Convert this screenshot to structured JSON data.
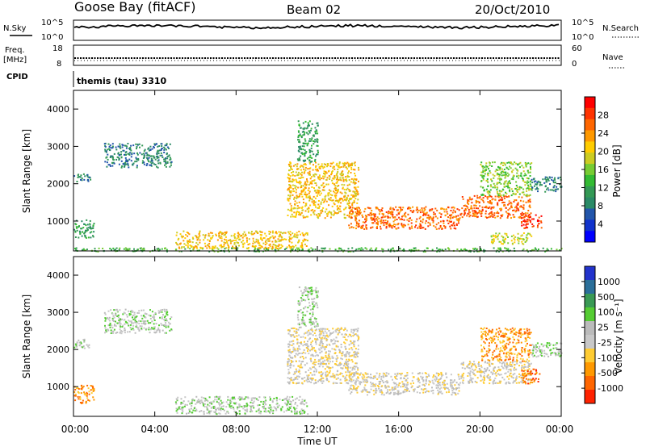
{
  "header": {
    "station": "Goose Bay (fitACF)",
    "beam": "Beam 02",
    "date": "20/Oct/2010"
  },
  "top_panels": {
    "nsky_label": "N.Sky",
    "nsearch_label": "N.Search",
    "noise_ticks": [
      "10^5",
      "10^0"
    ],
    "freq_label_1": "Freq.",
    "freq_label_2": "[MHz]",
    "freq_ticks": [
      "18",
      "8"
    ],
    "nave_label": "Nave",
    "nave_ticks": [
      "60",
      "0"
    ],
    "cpid_label": "CPID",
    "cpid_value": "themis (tau) 3310"
  },
  "colorbars": {
    "power": {
      "label": "Power [dB]",
      "ticks": [
        "28",
        "24",
        "20",
        "16",
        "12",
        "8",
        "4"
      ],
      "colors": [
        "#ff0000",
        "#ff3300",
        "#ff6600",
        "#ff9900",
        "#ffcc00",
        "#cccc22",
        "#77cc33",
        "#33bb33",
        "#339955",
        "#2a8a66",
        "#2255aa",
        "#1133cc",
        "#0000ff"
      ]
    },
    "velocity": {
      "label": "Velocity [m s⁻¹]",
      "ticks": [
        "1000",
        "500",
        "100",
        "25",
        "-25",
        "-100",
        "-500",
        "-1000"
      ],
      "colors": [
        "#2233cc",
        "#2b6f9a",
        "#3a9a55",
        "#55cc33",
        "#bbbbbb",
        "#c8c8c8",
        "#ffcc33",
        "#ff9900",
        "#ff6600",
        "#ff2200"
      ]
    }
  },
  "chart_data": [
    {
      "type": "heatmap",
      "title": "Power",
      "ylabel": "Slant Range [km]",
      "ylim": [
        200,
        4500
      ],
      "yticks": [
        "4000",
        "3000",
        "2000",
        "1000"
      ],
      "xlim": [
        0,
        24
      ],
      "scatter_regions": [
        {
          "t0": 0.0,
          "t1": 0.8,
          "r0": 2050,
          "r1": 2300,
          "level": 3
        },
        {
          "t0": 1.5,
          "t1": 4.8,
          "r0": 2450,
          "r1": 3100,
          "level": 3
        },
        {
          "t0": 0.0,
          "t1": 1.0,
          "r0": 550,
          "r1": 1050,
          "level": 4
        },
        {
          "t0": 0.0,
          "t1": 24.0,
          "r0": 200,
          "r1": 300,
          "level": 5
        },
        {
          "t0": 5.0,
          "t1": 11.5,
          "r0": 280,
          "r1": 750,
          "level": 8
        },
        {
          "t0": 10.5,
          "t1": 14.0,
          "r0": 1100,
          "r1": 2600,
          "level": 8
        },
        {
          "t0": 11.0,
          "t1": 12.0,
          "r0": 2600,
          "r1": 3700,
          "level": 4
        },
        {
          "t0": 13.5,
          "t1": 19.0,
          "r0": 800,
          "r1": 1400,
          "level": 10
        },
        {
          "t0": 19.0,
          "t1": 22.5,
          "r0": 1100,
          "r1": 1700,
          "level": 10
        },
        {
          "t0": 20.0,
          "t1": 22.5,
          "r0": 1700,
          "r1": 2600,
          "level": 6
        },
        {
          "t0": 22.0,
          "t1": 23.0,
          "r0": 800,
          "r1": 1200,
          "level": 11
        },
        {
          "t0": 20.5,
          "t1": 22.5,
          "r0": 400,
          "r1": 700,
          "level": 7
        },
        {
          "t0": 22.5,
          "t1": 24.0,
          "r0": 1800,
          "r1": 2200,
          "level": 3
        }
      ]
    },
    {
      "type": "heatmap",
      "title": "Velocity",
      "ylabel": "Slant Range [km]",
      "ylim": [
        200,
        4500
      ],
      "yticks": [
        "4000",
        "3000",
        "2000",
        "1000"
      ],
      "xlim": [
        0,
        24
      ],
      "xticks": [
        "00:00",
        "04:00",
        "08:00",
        "12:00",
        "16:00",
        "20:00",
        "00:00"
      ],
      "xlabel": "Time UT",
      "scatter_regions": [
        {
          "t0": 0.0,
          "t1": 0.8,
          "r0": 2050,
          "r1": 2300,
          "level": 4
        },
        {
          "t0": 1.5,
          "t1": 4.8,
          "r0": 2450,
          "r1": 3100,
          "level": 4
        },
        {
          "t0": 0.0,
          "t1": 1.0,
          "r0": 550,
          "r1": 1050,
          "level": 7
        },
        {
          "t0": 5.0,
          "t1": 11.5,
          "r0": 280,
          "r1": 750,
          "level": 4
        },
        {
          "t0": 10.5,
          "t1": 14.0,
          "r0": 1100,
          "r1": 2600,
          "level": 5
        },
        {
          "t0": 11.0,
          "t1": 12.0,
          "r0": 2600,
          "r1": 3700,
          "level": 4
        },
        {
          "t0": 13.5,
          "t1": 19.0,
          "r0": 800,
          "r1": 1400,
          "level": 5
        },
        {
          "t0": 19.0,
          "t1": 22.5,
          "r0": 1100,
          "r1": 1700,
          "level": 5
        },
        {
          "t0": 20.0,
          "t1": 22.5,
          "r0": 1700,
          "r1": 2600,
          "level": 7
        },
        {
          "t0": 22.0,
          "t1": 23.0,
          "r0": 1100,
          "r1": 1500,
          "level": 8
        },
        {
          "t0": 22.5,
          "t1": 24.0,
          "r0": 1800,
          "r1": 2200,
          "level": 4
        }
      ]
    }
  ]
}
